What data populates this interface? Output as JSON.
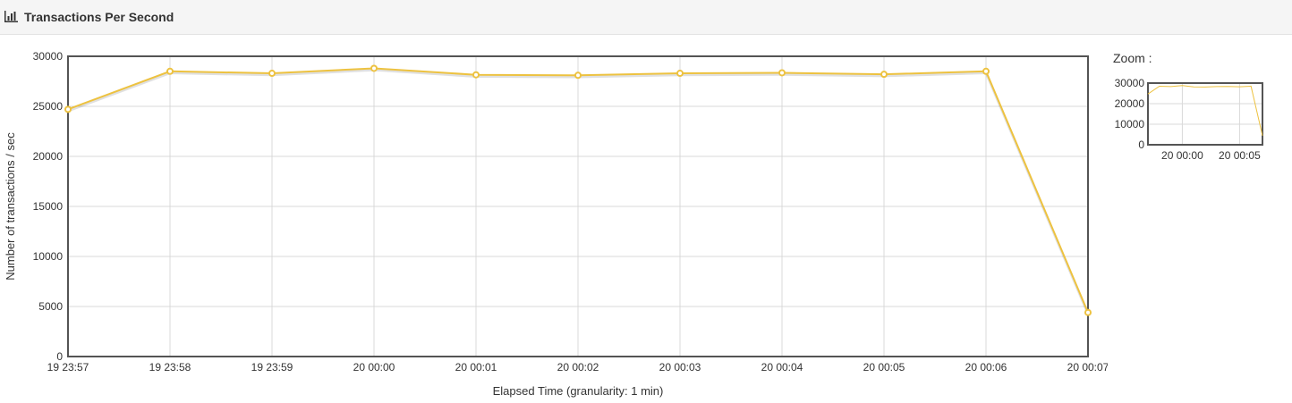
{
  "header": {
    "title": "Transactions Per Second",
    "icon": "bar-chart-icon"
  },
  "zoom": {
    "label": "Zoom :"
  },
  "colors": {
    "series": "#edc240",
    "grid": "#d9d9d9",
    "axis": "#545454"
  },
  "chart_data": {
    "type": "line",
    "title": "",
    "xlabel": "Elapsed Time (granularity: 1 min)",
    "ylabel": "Number of transactions / sec",
    "x": [
      "19 23:57",
      "19 23:58",
      "19 23:59",
      "20 00:00",
      "20 00:01",
      "20 00:02",
      "20 00:03",
      "20 00:04",
      "20 00:05",
      "20 00:06",
      "20 00:07"
    ],
    "series": [
      {
        "name": "",
        "values": [
          24700,
          28500,
          28300,
          28800,
          28150,
          28100,
          28300,
          28350,
          28200,
          28500,
          4400
        ]
      }
    ],
    "ylim": [
      0,
      30000
    ],
    "yticks": [
      0,
      5000,
      10000,
      15000,
      20000,
      25000,
      30000
    ],
    "grid": true,
    "legend": "none"
  },
  "zoom_chart": {
    "type": "line",
    "ylim": [
      0,
      30000
    ],
    "yticks": [
      0,
      10000,
      20000,
      30000
    ],
    "xticks": [
      "20 00:00",
      "20 00:05"
    ]
  }
}
